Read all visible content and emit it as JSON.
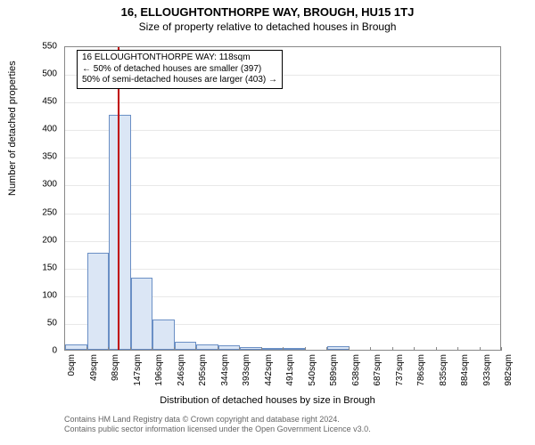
{
  "title_main": "16, ELLOUGHTONTHORPE WAY, BROUGH, HU15 1TJ",
  "title_sub": "Size of property relative to detached houses in Brough",
  "ylabel": "Number of detached properties",
  "xlabel": "Distribution of detached houses by size in Brough",
  "footer_line1": "Contains HM Land Registry data © Crown copyright and database right 2024.",
  "footer_line2": "Contains public sector information licensed under the Open Government Licence v3.0.",
  "callout": {
    "line1": "16 ELLOUGHTONTHORPE WAY: 118sqm",
    "line2": "← 50% of detached houses are smaller (397)",
    "line3": "50% of semi-detached houses are larger (403) →"
  },
  "chart": {
    "type": "histogram",
    "ylim": [
      0,
      550
    ],
    "ytick_step": 50,
    "x_tick_labels": [
      "0sqm",
      "49sqm",
      "98sqm",
      "147sqm",
      "196sqm",
      "246sqm",
      "295sqm",
      "344sqm",
      "393sqm",
      "442sqm",
      "491sqm",
      "540sqm",
      "589sqm",
      "638sqm",
      "687sqm",
      "737sqm",
      "786sqm",
      "835sqm",
      "884sqm",
      "933sqm",
      "982sqm"
    ],
    "x_bin_count": 20,
    "bar_values": [
      10,
      175,
      425,
      130,
      55,
      15,
      10,
      8,
      5,
      3,
      3,
      0,
      6,
      0,
      0,
      0,
      0,
      0,
      0,
      0
    ],
    "reference_x_sqm": 118,
    "x_domain_max": 982,
    "bar_fill": "#dbe6f5",
    "bar_stroke": "#6a8fc5",
    "reference_line_color": "#c00000",
    "grid_color": "#e8e8e8",
    "axis_color": "#888888",
    "background_color": "#ffffff",
    "title_fontsize": 13,
    "subtitle_fontsize": 12,
    "axis_label_fontsize": 11,
    "tick_fontsize": 10
  }
}
